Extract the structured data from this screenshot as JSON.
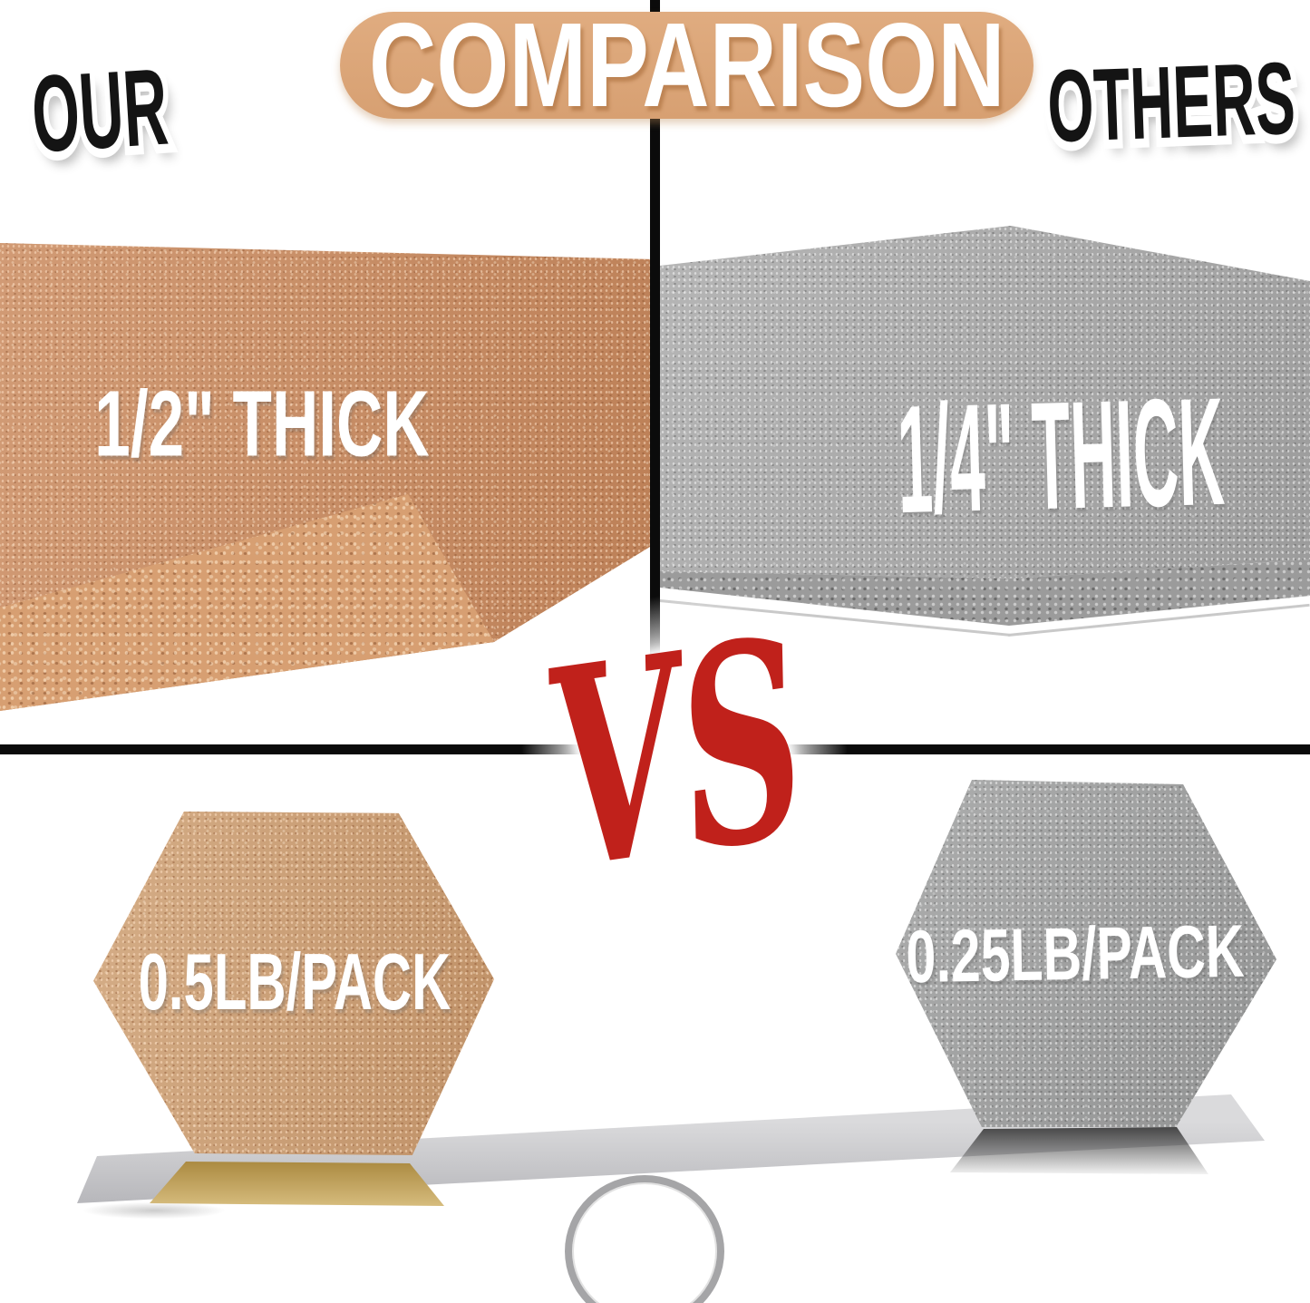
{
  "banner": {
    "title": "COMPARISON"
  },
  "columns": {
    "left": "OUR",
    "right": "OTHERS"
  },
  "vs_text": "VS",
  "comparisons": {
    "thickness": {
      "ours": "1/2\" THICK",
      "others": "1/4\" THICK"
    },
    "weight": {
      "ours": "0.5LB/PACK",
      "others": "0.25LB/PACK"
    }
  },
  "colors": {
    "cork": "#cb8d62",
    "cork_light": "#d79f72",
    "gray_board": "#a8a8a8",
    "banner_pill": "#d7a072",
    "vs_red": "#c0211b",
    "divider": "#0b0b0b",
    "beam": "#b7b7bb",
    "gold_reflection": "#ab8a41"
  }
}
